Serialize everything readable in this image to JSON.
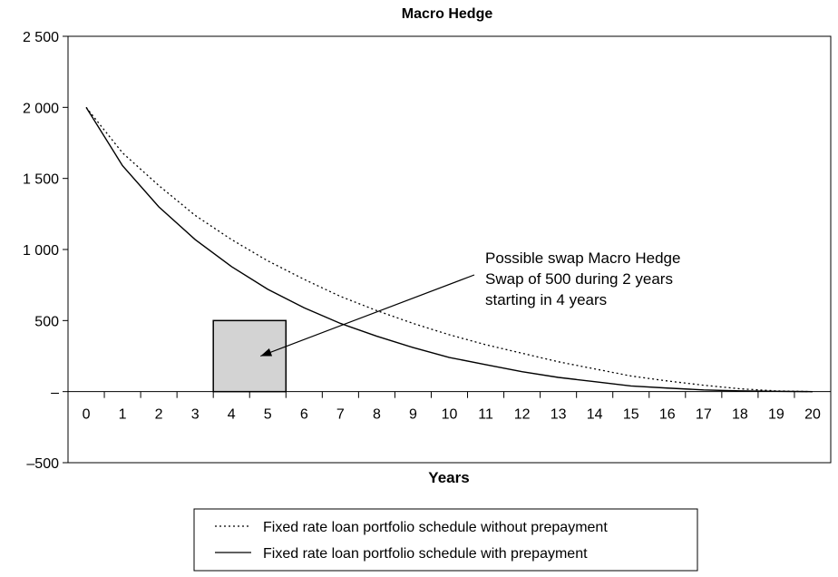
{
  "chart_data": {
    "type": "line",
    "title": "Macro Hedge",
    "xlabel": "Years",
    "ylabel": "",
    "x": [
      0,
      1,
      2,
      3,
      4,
      5,
      6,
      7,
      8,
      9,
      10,
      11,
      12,
      13,
      14,
      15,
      16,
      17,
      18,
      19,
      20
    ],
    "x_tick_labels": [
      "0",
      "1",
      "2",
      "3",
      "4",
      "5",
      "6",
      "7",
      "8",
      "9",
      "10",
      "11",
      "12",
      "13",
      "14",
      "15",
      "16",
      "17",
      "18",
      "19",
      "20"
    ],
    "xlim": [
      -0.5,
      20.5
    ],
    "ylim": [
      -500,
      2500
    ],
    "y_ticks": [
      -500,
      0,
      500,
      1000,
      1500,
      2000,
      2500
    ],
    "y_tick_labels": [
      "–500",
      "–",
      "500",
      "1 000",
      "1 500",
      "2 000",
      "2 500"
    ],
    "grid": false,
    "series": [
      {
        "name": "Fixed rate loan portfolio schedule without prepayment",
        "style": "dotted",
        "color": "#000000",
        "values": [
          2000,
          1680,
          1450,
          1240,
          1070,
          920,
          790,
          670,
          570,
          480,
          400,
          330,
          270,
          210,
          160,
          110,
          75,
          45,
          20,
          5,
          0
        ]
      },
      {
        "name": "Fixed rate loan portfolio schedule with prepayment",
        "style": "solid",
        "color": "#000000",
        "values": [
          2000,
          1590,
          1300,
          1070,
          880,
          720,
          590,
          480,
          390,
          310,
          240,
          190,
          140,
          100,
          70,
          40,
          25,
          12,
          5,
          2,
          0
        ]
      }
    ],
    "swap_box": {
      "x_start": 3.5,
      "x_end": 5.5,
      "value": 500,
      "fill": "#d3d3d3",
      "stroke": "#000000"
    },
    "annotation": {
      "lines": [
        "Possible swap Macro Hedge",
        "Swap of 500 during 2 years",
        "starting in 4 years"
      ],
      "arrow_target": [
        4.8,
        250
      ]
    },
    "legend_position": "bottom"
  }
}
